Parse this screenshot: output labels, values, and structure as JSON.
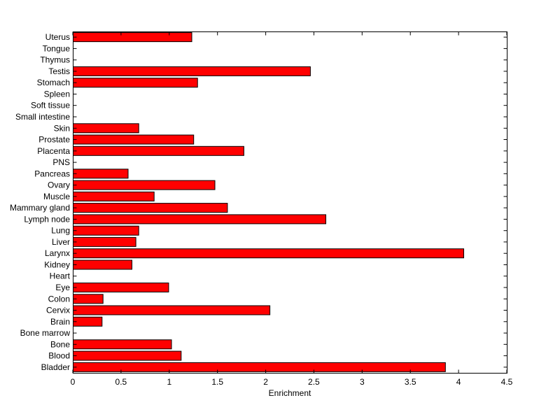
{
  "chart_data": {
    "type": "bar",
    "orientation": "horizontal",
    "title": "",
    "xlabel": "Enrichment",
    "ylabel": "",
    "xlim": [
      0,
      4.5
    ],
    "x_ticks": [
      0,
      0.5,
      1,
      1.5,
      2,
      2.5,
      3,
      3.5,
      4,
      4.5
    ],
    "x_tick_labels": [
      "0",
      "0.5",
      "1",
      "1.5",
      "2",
      "2.5",
      "3",
      "3.5",
      "4",
      "4.5"
    ],
    "grid": false,
    "legend": "none",
    "bar_color": "#ff0000",
    "bar_edge_color": "#000000",
    "categories": [
      "Bladder",
      "Blood",
      "Bone",
      "Bone marrow",
      "Brain",
      "Cervix",
      "Colon",
      "Eye",
      "Heart",
      "Kidney",
      "Larynx",
      "Liver",
      "Lung",
      "Lymph node",
      "Mammary gland",
      "Muscle",
      "Ovary",
      "Pancreas",
      "PNS",
      "Placenta",
      "Prostate",
      "Skin",
      "Small intestine",
      "Soft tissue",
      "Spleen",
      "Stomach",
      "Testis",
      "Thymus",
      "Tongue",
      "Uterus"
    ],
    "values": [
      3.86,
      1.12,
      1.02,
      0,
      0.3,
      2.04,
      0.31,
      0.99,
      0,
      0.61,
      4.05,
      0.65,
      0.68,
      2.62,
      1.6,
      0.84,
      1.47,
      0.57,
      0,
      1.77,
      1.25,
      0.68,
      0,
      0,
      0,
      1.29,
      2.46,
      0,
      0,
      1.23
    ]
  }
}
